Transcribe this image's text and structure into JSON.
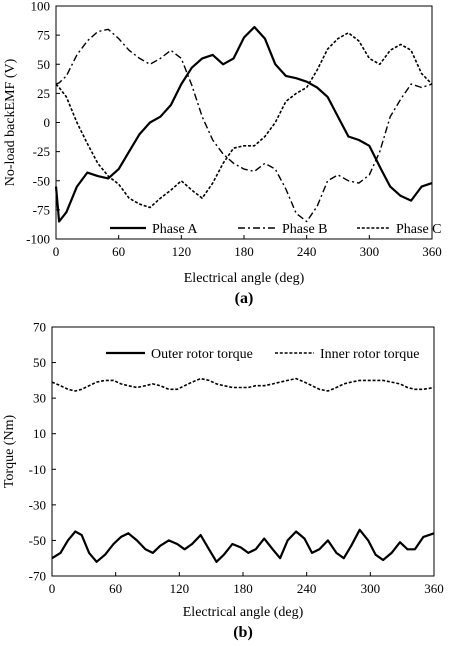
{
  "chart_data": [
    {
      "type": "line",
      "panel_label": "(a)",
      "title": "",
      "xlabel": "Electrical  angle  (deg)",
      "ylabel": "No-load backEMF  (V)",
      "xlim": [
        0,
        360
      ],
      "ylim": [
        -100,
        100
      ],
      "xticks": [
        "0",
        "60",
        "120",
        "180",
        "240",
        "300",
        "360"
      ],
      "yticks": [
        "100",
        "75",
        "50",
        "25",
        "0",
        "-25",
        "-50",
        "-75",
        "-100"
      ],
      "grid": false,
      "legend_position": "bottom-inside",
      "x": [
        0,
        3,
        10,
        20,
        30,
        40,
        50,
        60,
        70,
        80,
        90,
        100,
        110,
        120,
        130,
        140,
        150,
        160,
        170,
        180,
        190,
        200,
        210,
        220,
        230,
        240,
        250,
        260,
        270,
        280,
        290,
        300,
        310,
        320,
        330,
        340,
        350,
        360
      ],
      "series": [
        {
          "name": "Phase A",
          "style": "solid",
          "values": [
            -55,
            -85,
            -77,
            -55,
            -43,
            -46,
            -48,
            -40,
            -25,
            -10,
            0,
            5,
            15,
            33,
            47,
            55,
            58,
            50,
            55,
            73,
            82,
            72,
            50,
            40,
            38,
            35,
            30,
            22,
            5,
            -12,
            -15,
            -20,
            -38,
            -55,
            -63,
            -67,
            -55,
            -52
          ]
        },
        {
          "name": "Phase B",
          "style": "dashdot",
          "values": [
            33,
            34,
            40,
            58,
            70,
            78,
            80,
            72,
            62,
            55,
            50,
            55,
            62,
            55,
            32,
            5,
            -15,
            -27,
            -35,
            -40,
            -42,
            -35,
            -40,
            -57,
            -78,
            -85,
            -72,
            -50,
            -45,
            -50,
            -52,
            -45,
            -25,
            5,
            20,
            33,
            30,
            33
          ]
        },
        {
          "name": "Phase C",
          "style": "dotted",
          "values": [
            33,
            30,
            22,
            0,
            -18,
            -35,
            -46,
            -53,
            -65,
            -70,
            -73,
            -65,
            -58,
            -50,
            -58,
            -65,
            -52,
            -35,
            -22,
            -20,
            -20,
            -12,
            0,
            18,
            25,
            30,
            45,
            63,
            72,
            77,
            70,
            55,
            50,
            62,
            67,
            62,
            42,
            33
          ]
        }
      ]
    },
    {
      "type": "line",
      "panel_label": "(b)",
      "title": "",
      "xlabel": "Electrical  angle  (deg)",
      "ylabel": "Torque (Nm)",
      "xlim": [
        0,
        360
      ],
      "ylim": [
        -70,
        70
      ],
      "xticks": [
        "0",
        "60",
        "120",
        "180",
        "240",
        "300",
        "360"
      ],
      "yticks": [
        "70",
        "50",
        "30",
        "10",
        "-10",
        "-30",
        "-50",
        "-70"
      ],
      "grid": false,
      "legend_position": "top-inside",
      "x": [
        0,
        8,
        15,
        22,
        28,
        35,
        42,
        50,
        58,
        65,
        72,
        80,
        88,
        95,
        102,
        110,
        118,
        125,
        132,
        140,
        148,
        155,
        162,
        170,
        178,
        185,
        192,
        200,
        208,
        215,
        222,
        230,
        238,
        245,
        252,
        260,
        268,
        275,
        282,
        290,
        298,
        305,
        312,
        320,
        328,
        335,
        342,
        350,
        360
      ],
      "series": [
        {
          "name": "Outer rotor torque",
          "style": "solid",
          "values": [
            -60,
            -57,
            -50,
            -45,
            -47,
            -57,
            -62,
            -58,
            -52,
            -48,
            -46,
            -50,
            -55,
            -57,
            -53,
            -50,
            -52,
            -55,
            -52,
            -47,
            -55,
            -62,
            -58,
            -52,
            -54,
            -57,
            -55,
            -49,
            -55,
            -60,
            -50,
            -45,
            -49,
            -57,
            -55,
            -50,
            -57,
            -60,
            -53,
            -44,
            -50,
            -58,
            -61,
            -57,
            -51,
            -55,
            -55,
            -48,
            -46
          ]
        },
        {
          "name": "Inner rotor torque",
          "style": "dotted",
          "values": [
            39,
            37,
            35,
            34,
            35,
            37,
            39,
            40,
            40,
            38,
            37,
            36,
            37,
            38,
            37,
            35,
            35,
            37,
            39,
            41,
            40,
            38,
            37,
            36,
            36,
            36,
            37,
            37,
            38,
            39,
            40,
            41,
            39,
            37,
            35,
            34,
            36,
            38,
            39,
            40,
            40,
            40,
            40,
            39,
            38,
            36,
            35,
            35,
            36
          ]
        }
      ]
    }
  ]
}
